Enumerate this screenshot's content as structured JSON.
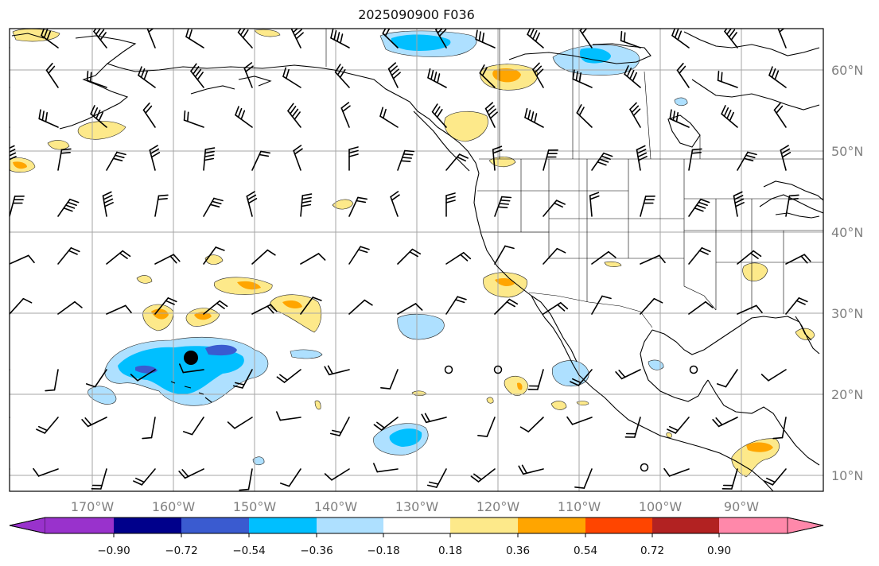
{
  "title": "2025090900 F036",
  "lon_labels": [
    "170°W",
    "160°W",
    "150°W",
    "140°W",
    "130°W",
    "120°W",
    "110°W",
    "100°W",
    "90°W"
  ],
  "lat_labels": [
    "60°N",
    "50°N",
    "40°N",
    "30°N",
    "20°N",
    "10°N"
  ],
  "colorbar": {
    "tick_labels": [
      "−0.90",
      "−0.72",
      "−0.54",
      "−0.36",
      "−0.18",
      "0.18",
      "0.36",
      "0.54",
      "0.72",
      "0.90"
    ],
    "colors": [
      "#9932cc",
      "#00008b",
      "#3a5bd0",
      "#00bfff",
      "#aee0ff",
      "#ffffff",
      "#fde98a",
      "#ffa500",
      "#ff4500",
      "#b22222",
      "#ff88aa"
    ]
  },
  "colors": {
    "coast": "#000000",
    "grid": "#a6a6a6"
  }
}
